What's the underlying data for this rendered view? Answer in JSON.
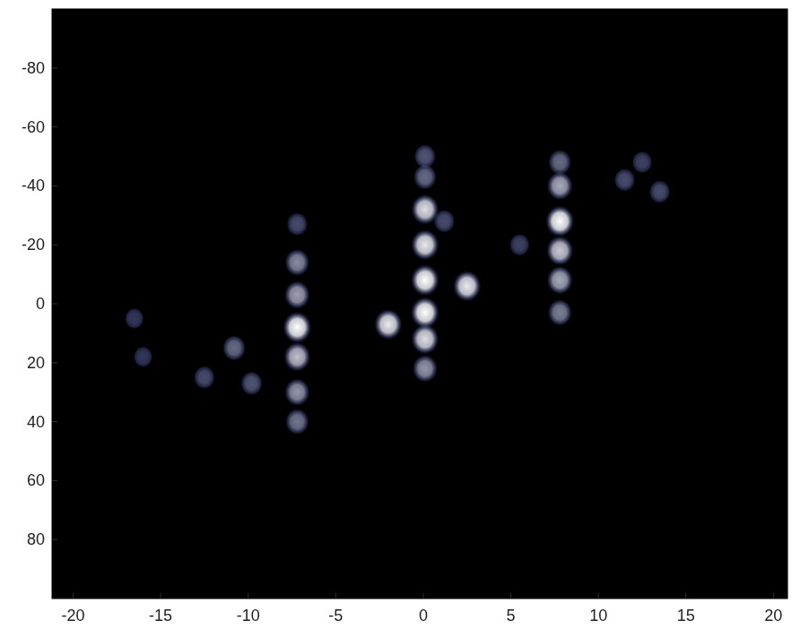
{
  "chart_data": {
    "type": "scatter",
    "x": [
      -7.2,
      -7.2,
      -7.2,
      -7.2,
      -7.2,
      -7.2,
      -7.2,
      0.1,
      0.1,
      0.1,
      0.1,
      0.1,
      0.1,
      0.1,
      0.1,
      -2.0,
      2.5,
      1.2,
      7.8,
      7.8,
      7.8,
      7.8,
      7.8,
      7.8,
      5.5,
      11.5,
      13.5,
      12.5,
      -10.8,
      -9.8,
      -12.5,
      -16.5,
      -16.0
    ],
    "values": [
      -27,
      -14,
      -3,
      8,
      18,
      30,
      40,
      -50,
      -43,
      -32,
      -20,
      -8,
      3,
      12,
      22,
      7,
      -6,
      -28,
      -48,
      -40,
      -28,
      -18,
      -8,
      3,
      -20,
      -42,
      -38,
      -48,
      15,
      27,
      25,
      5,
      18
    ],
    "intensity": [
      0.15,
      0.45,
      0.55,
      1.0,
      0.7,
      0.5,
      0.35,
      0.2,
      0.3,
      0.85,
      0.9,
      1.0,
      1.0,
      0.85,
      0.5,
      0.9,
      0.9,
      0.15,
      0.3,
      0.6,
      1.0,
      0.75,
      0.6,
      0.4,
      0.1,
      0.15,
      0.15,
      0.1,
      0.3,
      0.2,
      0.15,
      0.05,
      0.05
    ],
    "xlim": [
      -21.2,
      20.8
    ],
    "ylim": [
      -100,
      100
    ],
    "xticks": [
      -20,
      -15,
      -10,
      -5,
      0,
      5,
      10,
      15,
      20
    ],
    "yticks": [
      -80,
      -60,
      -40,
      -20,
      0,
      20,
      40,
      60,
      80
    ],
    "grid": false
  }
}
